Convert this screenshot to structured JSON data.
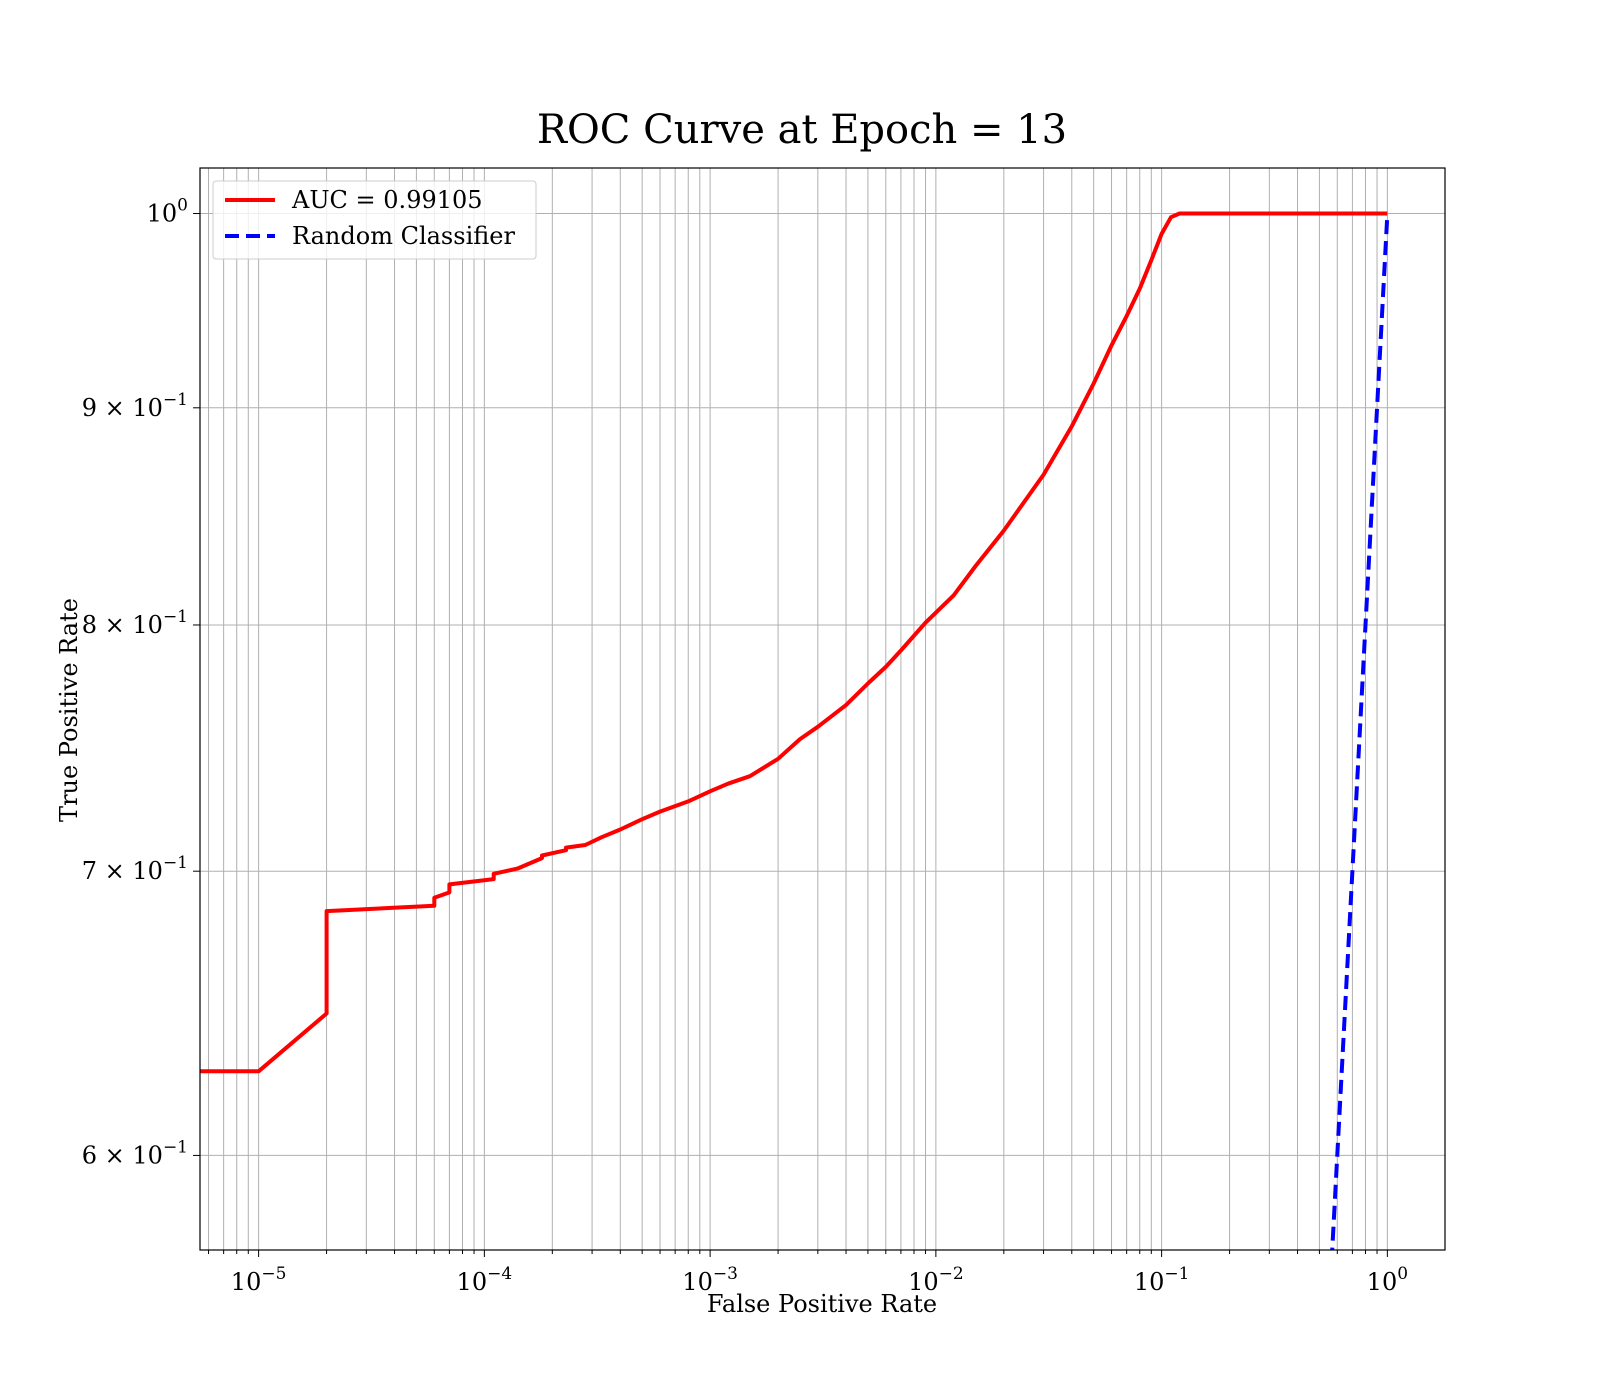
{
  "chart_data": {
    "type": "line",
    "title": "ROC Curve at Epoch = 13",
    "xlabel": "False Positive Rate",
    "ylabel": "True Positive Rate",
    "xscale": "log",
    "yscale": "log",
    "xlim": [
      5.5e-06,
      1.8
    ],
    "ylim": [
      0.57,
      1.025
    ],
    "x_ticks": [
      {
        "value": 1e-05,
        "base": "10",
        "exp": "−5"
      },
      {
        "value": 0.0001,
        "base": "10",
        "exp": "−4"
      },
      {
        "value": 0.001,
        "base": "10",
        "exp": "−3"
      },
      {
        "value": 0.01,
        "base": "10",
        "exp": "−2"
      },
      {
        "value": 0.1,
        "base": "10",
        "exp": "−1"
      },
      {
        "value": 1,
        "base": "10",
        "exp": "0"
      }
    ],
    "y_ticks": [
      {
        "value": 0.6,
        "base": "6 × 10",
        "exp": "−1"
      },
      {
        "value": 0.7,
        "base": "7 × 10",
        "exp": "−1"
      },
      {
        "value": 0.8,
        "base": "8 × 10",
        "exp": "−1"
      },
      {
        "value": 0.9,
        "base": "9 × 10",
        "exp": "−1"
      },
      {
        "value": 1.0,
        "base": "10",
        "exp": "0"
      }
    ],
    "grid": true,
    "legend_position": "top-left",
    "series": [
      {
        "name": "AUC = 0.99105",
        "color": "#ff0000",
        "style": "solid",
        "x": [
          5.5e-06,
          1e-05,
          2e-05,
          2e-05,
          6e-05,
          6e-05,
          7e-05,
          7e-05,
          0.00011,
          0.00011,
          0.00014,
          0.00018,
          0.00018,
          0.00023,
          0.00023,
          0.00028,
          0.00033,
          0.0004,
          0.0005,
          0.0006,
          0.0008,
          0.001,
          0.0012,
          0.0015,
          0.002,
          0.0025,
          0.003,
          0.004,
          0.005,
          0.006,
          0.007,
          0.009,
          0.012,
          0.015,
          0.02,
          0.03,
          0.04,
          0.05,
          0.06,
          0.07,
          0.08,
          0.09,
          0.1,
          0.11,
          0.12,
          0.2,
          0.5,
          1.0
        ],
        "y": [
          0.628,
          0.628,
          0.648,
          0.685,
          0.687,
          0.69,
          0.692,
          0.695,
          0.697,
          0.699,
          0.701,
          0.705,
          0.706,
          0.708,
          0.709,
          0.71,
          0.713,
          0.716,
          0.72,
          0.723,
          0.727,
          0.731,
          0.734,
          0.737,
          0.744,
          0.752,
          0.757,
          0.766,
          0.775,
          0.782,
          0.789,
          0.801,
          0.813,
          0.826,
          0.842,
          0.868,
          0.891,
          0.912,
          0.931,
          0.946,
          0.96,
          0.975,
          0.989,
          0.998,
          1.0,
          1.0,
          1.0,
          1.0
        ]
      },
      {
        "name": "Random Classifier",
        "color": "#0000ff",
        "style": "dashed",
        "x": [
          0.56,
          1.0
        ],
        "y": [
          0.56,
          1.0
        ]
      }
    ]
  }
}
